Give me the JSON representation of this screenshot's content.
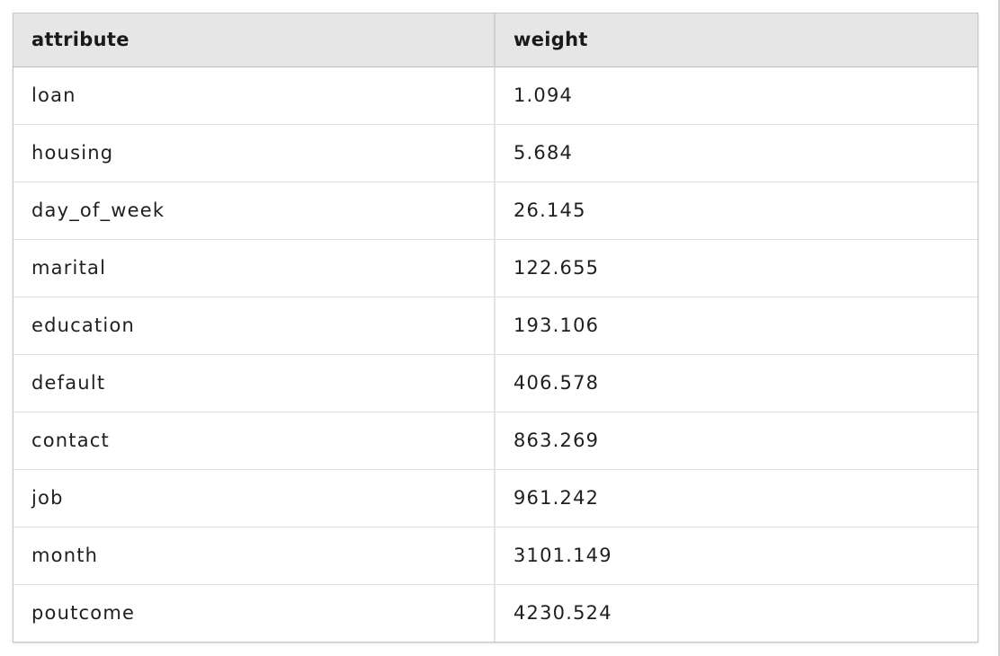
{
  "table": {
    "headers": [
      "attribute",
      "weight"
    ],
    "rows": [
      [
        "loan",
        "1.094"
      ],
      [
        "housing",
        "5.684"
      ],
      [
        "day_of_week",
        "26.145"
      ],
      [
        "marital",
        "122.655"
      ],
      [
        "education",
        "193.106"
      ],
      [
        "default",
        "406.578"
      ],
      [
        "contact",
        "863.269"
      ],
      [
        "job",
        "961.242"
      ],
      [
        "month",
        "3101.149"
      ],
      [
        "poutcome",
        "4230.524"
      ]
    ]
  },
  "colors": {
    "header_bg": "#e6e6e6",
    "border": "#c6c6c6",
    "row_border": "#dedede"
  }
}
